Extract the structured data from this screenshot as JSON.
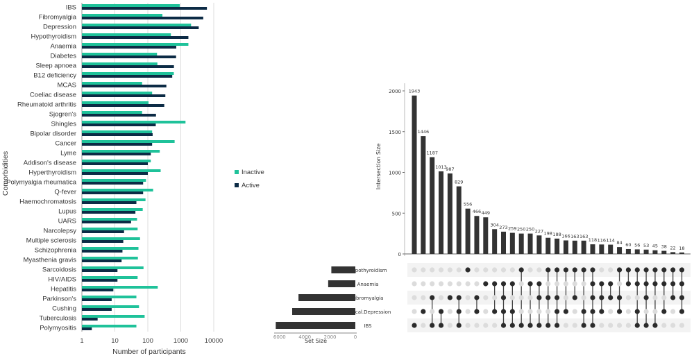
{
  "chart_data": [
    {
      "type": "bar",
      "orientation": "horizontal",
      "xlabel": "Number of participants",
      "ylabel": "Comorbidities",
      "xscale": "log",
      "xlim": [
        1,
        10000
      ],
      "xticks": [
        "1",
        "10",
        "100",
        "1000",
        "10000"
      ],
      "grid": true,
      "legend_placement": "right",
      "categories": [
        "IBS",
        "Fibromyalgia",
        "Depression",
        "Hypothyroidism",
        "Anaemia",
        "Diabetes",
        "Sleep apnoea",
        "B12 deficiency",
        "MCAS",
        "Coeliac disease",
        "Rheumatoid arthritis",
        "Sjogren's",
        "Shingles",
        "Bipolar disorder",
        "Cancer",
        "Lyme",
        "Addison's disease",
        "Hyperthyroidism",
        "Polymyalgia rheumatica",
        "Q-fever",
        "Haemochromatosis",
        "Lupus",
        "UARS",
        "Narcolepsy",
        "Multiple sclerosis",
        "Schizophrenia",
        "Myasthenia gravis",
        "Sarcoidosis",
        "HIV/AIDS",
        "Hepatitis",
        "Parkinson's",
        "Cushing",
        "Tuberculosis",
        "Polymyositis"
      ],
      "series": [
        {
          "name": "Inactive",
          "color": "#1fc29a",
          "values": [
            930,
            277,
            2050,
            500,
            1700,
            190,
            195,
            615,
            67,
            135,
            105,
            67,
            1390,
            135,
            650,
            230,
            123,
            245,
            88,
            145,
            85,
            70,
            47,
            49,
            58,
            52,
            50,
            74,
            49,
            200,
            45,
            54,
            80,
            45
          ]
        },
        {
          "name": "Active",
          "color": "#0c2b45",
          "values": [
            6200,
            4800,
            3500,
            1700,
            730,
            720,
            620,
            550,
            365,
            340,
            315,
            177,
            174,
            140,
            135,
            123,
            100,
            100,
            72,
            72,
            45,
            42,
            31,
            19,
            18,
            17,
            16,
            12,
            12,
            9,
            8,
            8,
            3,
            2
          ]
        }
      ]
    },
    {
      "type": "upset",
      "ylabel": "Intersection Size",
      "ylim": [
        0,
        2000
      ],
      "yticks": [
        "0",
        "500",
        "1000",
        "1500",
        "2000"
      ],
      "set_size_label": "Set Size",
      "set_size_ticks": [
        "6000",
        "4000",
        "2000",
        "0"
      ],
      "bar_color": "#333333",
      "sets": [
        "Hypothyroidism",
        "Anaemia",
        "Fibromyalgia",
        "Clinical.Depression",
        "IBS"
      ],
      "set_sizes": [
        1900,
        2150,
        4500,
        5000,
        6300
      ],
      "intersection_values": [
        1943,
        1446,
        1187,
        1013,
        987,
        829,
        556,
        466,
        449,
        304,
        273,
        259,
        250,
        250,
        227,
        198,
        188,
        166,
        163,
        163,
        118,
        116,
        114,
        84,
        60,
        56,
        53,
        45,
        38,
        22,
        18
      ],
      "intersection_labels": [
        "1943",
        "1446",
        "1187",
        "1013",
        "987",
        "829",
        "556",
        "466",
        "449",
        "304",
        "273",
        "259",
        "250",
        "250",
        "227",
        "198",
        "188",
        "166",
        "163",
        "163",
        "118",
        "116",
        "114",
        "84",
        "60",
        "56",
        "53",
        "45",
        "38",
        "22",
        "18"
      ],
      "intersections": [
        [
          "IBS"
        ],
        [
          "Clinical.Depression"
        ],
        [
          "Fibromyalgia",
          "IBS"
        ],
        [
          "Clinical.Depression",
          "IBS"
        ],
        [
          "Fibromyalgia"
        ],
        [
          "Fibromyalgia",
          "Clinical.Depression",
          "IBS"
        ],
        [
          "Hypothyroidism"
        ],
        [
          "Fibromyalgia",
          "Clinical.Depression"
        ],
        [
          "Anaemia"
        ],
        [
          "Anaemia",
          "Clinical.Depression"
        ],
        [
          "Anaemia",
          "Fibromyalgia",
          "Clinical.Depression",
          "IBS"
        ],
        [
          "Anaemia",
          "Clinical.Depression",
          "IBS"
        ],
        [
          "Hypothyroidism",
          "IBS"
        ],
        [
          "Anaemia",
          "IBS"
        ],
        [
          "Anaemia",
          "Fibromyalgia",
          "IBS"
        ],
        [
          "Hypothyroidism",
          "Fibromyalgia",
          "IBS"
        ],
        [
          "Hypothyroidism",
          "Fibromyalgia",
          "Clinical.Depression",
          "IBS"
        ],
        [
          "Hypothyroidism",
          "Clinical.Depression"
        ],
        [
          "Hypothyroidism",
          "Fibromyalgia"
        ],
        [
          "Hypothyroidism",
          "Clinical.Depression",
          "IBS"
        ],
        [
          "Hypothyroidism",
          "Anaemia",
          "Fibromyalgia",
          "Clinical.Depression",
          "IBS"
        ],
        [
          "Anaemia",
          "Fibromyalgia",
          "Clinical.Depression"
        ],
        [
          "Anaemia",
          "Fibromyalgia"
        ],
        [
          "Hypothyroidism",
          "Fibromyalgia",
          "Clinical.Depression"
        ],
        [
          "Hypothyroidism",
          "Anaemia"
        ],
        [
          "Hypothyroidism",
          "Anaemia",
          "Clinical.Depression",
          "IBS"
        ],
        [
          "Hypothyroidism",
          "Anaemia",
          "Fibromyalgia",
          "IBS"
        ],
        [
          "Hypothyroidism",
          "Anaemia",
          "IBS"
        ],
        [
          "Hypothyroidism",
          "Anaemia",
          "Clinical.Depression"
        ],
        [
          "Hypothyroidism",
          "Anaemia",
          "Fibromyalgia"
        ],
        [
          "Hypothyroidism",
          "Anaemia",
          "Fibromyalgia",
          "Clinical.Depression"
        ]
      ]
    }
  ]
}
